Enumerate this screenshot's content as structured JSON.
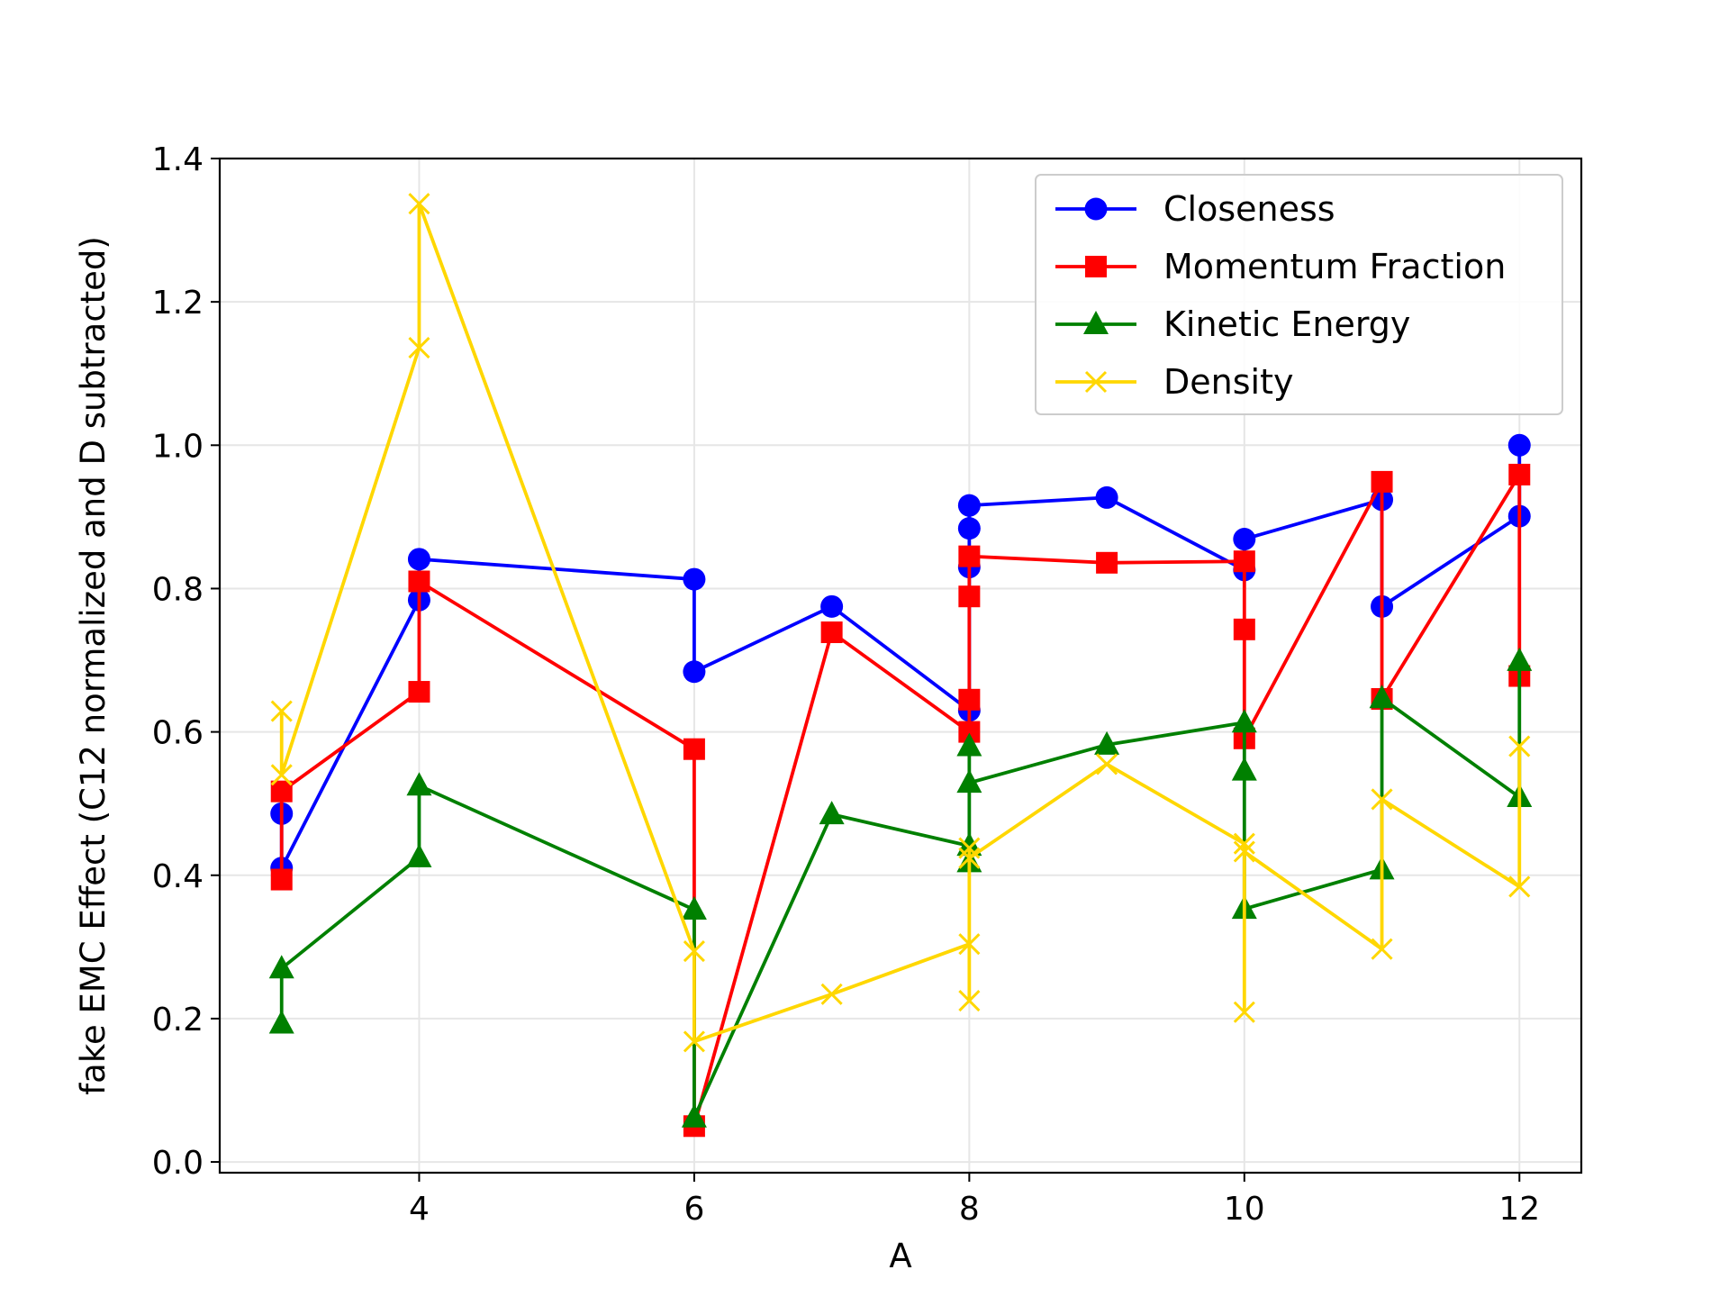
{
  "chart_data": {
    "type": "line",
    "xlabel": "A",
    "ylabel": "fake EMC Effect (C12 normalized and D subtracted)",
    "xlim": [
      2.55,
      12.45
    ],
    "ylim": [
      -0.015,
      1.4
    ],
    "xticks": [
      4,
      6,
      8,
      10,
      12
    ],
    "yticks": [
      0.0,
      0.2,
      0.4,
      0.6,
      0.8,
      1.0,
      1.2,
      1.4
    ],
    "xtick_labels": [
      "4",
      "6",
      "8",
      "10",
      "12"
    ],
    "ytick_labels": [
      "0.0",
      "0.2",
      "0.4",
      "0.6",
      "0.8",
      "1.0",
      "1.2",
      "1.4"
    ],
    "grid": true,
    "legend_position": "top-right",
    "series": [
      {
        "name": "Closeness",
        "color": "#0000ff",
        "marker": "circle",
        "x": [
          3,
          3,
          4,
          4,
          6,
          6,
          7,
          8,
          8,
          8,
          8,
          9,
          10,
          10,
          11,
          11,
          12,
          12
        ],
        "y": [
          0.486,
          0.41,
          0.784,
          0.841,
          0.813,
          0.684,
          0.775,
          0.63,
          0.83,
          0.884,
          0.916,
          0.927,
          0.826,
          0.869,
          0.924,
          0.775,
          0.901,
          1.0
        ]
      },
      {
        "name": "Momentum Fraction",
        "color": "#ff0000",
        "marker": "square",
        "x": [
          3,
          3,
          4,
          4,
          6,
          6,
          7,
          8,
          8,
          8,
          8,
          9,
          10,
          10,
          10,
          11,
          11,
          12,
          12
        ],
        "y": [
          0.394,
          0.517,
          0.656,
          0.81,
          0.576,
          0.05,
          0.739,
          0.6,
          0.645,
          0.789,
          0.845,
          0.836,
          0.838,
          0.743,
          0.591,
          0.949,
          0.646,
          0.959,
          0.678
        ]
      },
      {
        "name": "Kinetic Energy",
        "color": "#008000",
        "marker": "triangle",
        "x": [
          3,
          3,
          4,
          4,
          6,
          6,
          7,
          8,
          8,
          8,
          8,
          9,
          10,
          10,
          10,
          11,
          11,
          12,
          12
        ],
        "y": [
          0.193,
          0.27,
          0.425,
          0.525,
          0.352,
          0.062,
          0.485,
          0.441,
          0.418,
          0.58,
          0.529,
          0.582,
          0.613,
          0.546,
          0.353,
          0.408,
          0.647,
          0.509,
          0.699
        ]
      },
      {
        "name": "Density",
        "color": "#ffd700",
        "marker": "x",
        "x": [
          3,
          3,
          4,
          4,
          6,
          6,
          7,
          8,
          8,
          8,
          8,
          9,
          10,
          10,
          10,
          11,
          11,
          12,
          12
        ],
        "y": [
          0.629,
          0.54,
          1.136,
          1.337,
          0.294,
          0.168,
          0.234,
          0.304,
          0.225,
          0.438,
          0.424,
          0.555,
          0.444,
          0.209,
          0.433,
          0.297,
          0.506,
          0.384,
          0.58
        ]
      }
    ]
  }
}
